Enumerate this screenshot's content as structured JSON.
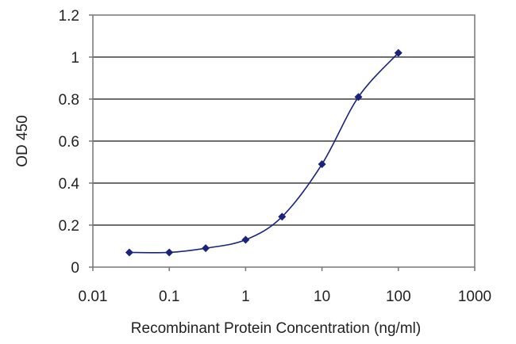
{
  "chart_data": {
    "type": "line",
    "title": "",
    "xlabel": "Recombinant Protein Concentration (ng/ml)",
    "ylabel": "OD 450",
    "xscale": "log",
    "xlim": [
      0.01,
      1000
    ],
    "ylim": [
      0,
      1.2
    ],
    "xticks": [
      0.01,
      0.1,
      1,
      10,
      100,
      1000
    ],
    "xtick_labels": [
      "0.01",
      "0.1",
      "1",
      "10",
      "100",
      "1000"
    ],
    "yticks": [
      0,
      0.2,
      0.4,
      0.6,
      0.8,
      1,
      1.2
    ],
    "ytick_labels": [
      "0",
      "0.2",
      "0.4",
      "0.6",
      "0.8",
      "1",
      "1.2"
    ],
    "grid": "horizontal",
    "legend": "none",
    "series": [
      {
        "x": [
          0.03,
          0.1,
          0.3,
          1,
          3,
          10,
          30,
          100
        ],
        "y": [
          0.07,
          0.07,
          0.09,
          0.13,
          0.24,
          0.49,
          0.81,
          1.02
        ],
        "color": "#1a237e",
        "marker": "diamond",
        "smooth": true
      }
    ]
  }
}
